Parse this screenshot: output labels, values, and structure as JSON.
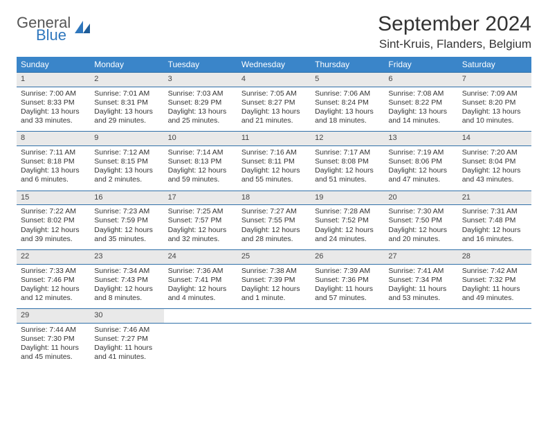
{
  "logo": {
    "general": "General",
    "blue": "Blue"
  },
  "title": "September 2024",
  "location": "Sint-Kruis, Flanders, Belgium",
  "colors": {
    "header_bg": "#3a85c9",
    "accent": "#2f77bd",
    "daynum_bg": "#e9e9e9",
    "rule": "#2f6fa8",
    "text": "#333333",
    "page_bg": "#ffffff"
  },
  "typography": {
    "title_fontsize": 30,
    "location_fontsize": 17,
    "dayhead_fontsize": 12,
    "cell_fontsize": 10.5,
    "logo_fontsize": 22
  },
  "day_headers": [
    "Sunday",
    "Monday",
    "Tuesday",
    "Wednesday",
    "Thursday",
    "Friday",
    "Saturday"
  ],
  "weeks": [
    [
      {
        "n": "1",
        "sr": "Sunrise: 7:00 AM",
        "ss": "Sunset: 8:33 PM",
        "d1": "Daylight: 13 hours",
        "d2": "and 33 minutes."
      },
      {
        "n": "2",
        "sr": "Sunrise: 7:01 AM",
        "ss": "Sunset: 8:31 PM",
        "d1": "Daylight: 13 hours",
        "d2": "and 29 minutes."
      },
      {
        "n": "3",
        "sr": "Sunrise: 7:03 AM",
        "ss": "Sunset: 8:29 PM",
        "d1": "Daylight: 13 hours",
        "d2": "and 25 minutes."
      },
      {
        "n": "4",
        "sr": "Sunrise: 7:05 AM",
        "ss": "Sunset: 8:27 PM",
        "d1": "Daylight: 13 hours",
        "d2": "and 21 minutes."
      },
      {
        "n": "5",
        "sr": "Sunrise: 7:06 AM",
        "ss": "Sunset: 8:24 PM",
        "d1": "Daylight: 13 hours",
        "d2": "and 18 minutes."
      },
      {
        "n": "6",
        "sr": "Sunrise: 7:08 AM",
        "ss": "Sunset: 8:22 PM",
        "d1": "Daylight: 13 hours",
        "d2": "and 14 minutes."
      },
      {
        "n": "7",
        "sr": "Sunrise: 7:09 AM",
        "ss": "Sunset: 8:20 PM",
        "d1": "Daylight: 13 hours",
        "d2": "and 10 minutes."
      }
    ],
    [
      {
        "n": "8",
        "sr": "Sunrise: 7:11 AM",
        "ss": "Sunset: 8:18 PM",
        "d1": "Daylight: 13 hours",
        "d2": "and 6 minutes."
      },
      {
        "n": "9",
        "sr": "Sunrise: 7:12 AM",
        "ss": "Sunset: 8:15 PM",
        "d1": "Daylight: 13 hours",
        "d2": "and 2 minutes."
      },
      {
        "n": "10",
        "sr": "Sunrise: 7:14 AM",
        "ss": "Sunset: 8:13 PM",
        "d1": "Daylight: 12 hours",
        "d2": "and 59 minutes."
      },
      {
        "n": "11",
        "sr": "Sunrise: 7:16 AM",
        "ss": "Sunset: 8:11 PM",
        "d1": "Daylight: 12 hours",
        "d2": "and 55 minutes."
      },
      {
        "n": "12",
        "sr": "Sunrise: 7:17 AM",
        "ss": "Sunset: 8:08 PM",
        "d1": "Daylight: 12 hours",
        "d2": "and 51 minutes."
      },
      {
        "n": "13",
        "sr": "Sunrise: 7:19 AM",
        "ss": "Sunset: 8:06 PM",
        "d1": "Daylight: 12 hours",
        "d2": "and 47 minutes."
      },
      {
        "n": "14",
        "sr": "Sunrise: 7:20 AM",
        "ss": "Sunset: 8:04 PM",
        "d1": "Daylight: 12 hours",
        "d2": "and 43 minutes."
      }
    ],
    [
      {
        "n": "15",
        "sr": "Sunrise: 7:22 AM",
        "ss": "Sunset: 8:02 PM",
        "d1": "Daylight: 12 hours",
        "d2": "and 39 minutes."
      },
      {
        "n": "16",
        "sr": "Sunrise: 7:23 AM",
        "ss": "Sunset: 7:59 PM",
        "d1": "Daylight: 12 hours",
        "d2": "and 35 minutes."
      },
      {
        "n": "17",
        "sr": "Sunrise: 7:25 AM",
        "ss": "Sunset: 7:57 PM",
        "d1": "Daylight: 12 hours",
        "d2": "and 32 minutes."
      },
      {
        "n": "18",
        "sr": "Sunrise: 7:27 AM",
        "ss": "Sunset: 7:55 PM",
        "d1": "Daylight: 12 hours",
        "d2": "and 28 minutes."
      },
      {
        "n": "19",
        "sr": "Sunrise: 7:28 AM",
        "ss": "Sunset: 7:52 PM",
        "d1": "Daylight: 12 hours",
        "d2": "and 24 minutes."
      },
      {
        "n": "20",
        "sr": "Sunrise: 7:30 AM",
        "ss": "Sunset: 7:50 PM",
        "d1": "Daylight: 12 hours",
        "d2": "and 20 minutes."
      },
      {
        "n": "21",
        "sr": "Sunrise: 7:31 AM",
        "ss": "Sunset: 7:48 PM",
        "d1": "Daylight: 12 hours",
        "d2": "and 16 minutes."
      }
    ],
    [
      {
        "n": "22",
        "sr": "Sunrise: 7:33 AM",
        "ss": "Sunset: 7:46 PM",
        "d1": "Daylight: 12 hours",
        "d2": "and 12 minutes."
      },
      {
        "n": "23",
        "sr": "Sunrise: 7:34 AM",
        "ss": "Sunset: 7:43 PM",
        "d1": "Daylight: 12 hours",
        "d2": "and 8 minutes."
      },
      {
        "n": "24",
        "sr": "Sunrise: 7:36 AM",
        "ss": "Sunset: 7:41 PM",
        "d1": "Daylight: 12 hours",
        "d2": "and 4 minutes."
      },
      {
        "n": "25",
        "sr": "Sunrise: 7:38 AM",
        "ss": "Sunset: 7:39 PM",
        "d1": "Daylight: 12 hours",
        "d2": "and 1 minute."
      },
      {
        "n": "26",
        "sr": "Sunrise: 7:39 AM",
        "ss": "Sunset: 7:36 PM",
        "d1": "Daylight: 11 hours",
        "d2": "and 57 minutes."
      },
      {
        "n": "27",
        "sr": "Sunrise: 7:41 AM",
        "ss": "Sunset: 7:34 PM",
        "d1": "Daylight: 11 hours",
        "d2": "and 53 minutes."
      },
      {
        "n": "28",
        "sr": "Sunrise: 7:42 AM",
        "ss": "Sunset: 7:32 PM",
        "d1": "Daylight: 11 hours",
        "d2": "and 49 minutes."
      }
    ],
    [
      {
        "n": "29",
        "sr": "Sunrise: 7:44 AM",
        "ss": "Sunset: 7:30 PM",
        "d1": "Daylight: 11 hours",
        "d2": "and 45 minutes."
      },
      {
        "n": "30",
        "sr": "Sunrise: 7:46 AM",
        "ss": "Sunset: 7:27 PM",
        "d1": "Daylight: 11 hours",
        "d2": "and 41 minutes."
      },
      null,
      null,
      null,
      null,
      null
    ]
  ]
}
